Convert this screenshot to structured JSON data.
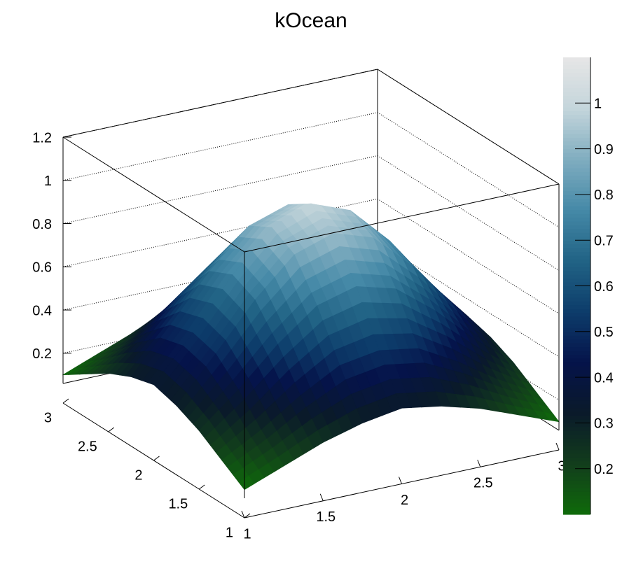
{
  "chart_data": {
    "type": "surface",
    "title": "kOcean",
    "x": [
      1,
      1.25,
      1.5,
      1.75,
      2,
      2.25,
      2.5,
      2.75,
      3
    ],
    "y": [
      1,
      1.25,
      1.5,
      1.75,
      2,
      2.25,
      2.5,
      2.75,
      3
    ],
    "z": [
      [
        0.1,
        0.17,
        0.24,
        0.29,
        0.32,
        0.29,
        0.24,
        0.17,
        0.1
      ],
      [
        0.17,
        0.27,
        0.39,
        0.49,
        0.52,
        0.49,
        0.39,
        0.27,
        0.17
      ],
      [
        0.24,
        0.39,
        0.56,
        0.7,
        0.75,
        0.7,
        0.56,
        0.39,
        0.24
      ],
      [
        0.29,
        0.49,
        0.7,
        0.87,
        0.93,
        0.87,
        0.7,
        0.49,
        0.29
      ],
      [
        0.32,
        0.52,
        0.75,
        0.93,
        1,
        0.93,
        0.75,
        0.52,
        0.32
      ],
      [
        0.29,
        0.49,
        0.7,
        0.87,
        0.93,
        0.87,
        0.7,
        0.49,
        0.29
      ],
      [
        0.24,
        0.39,
        0.56,
        0.7,
        0.75,
        0.7,
        0.56,
        0.39,
        0.24
      ],
      [
        0.17,
        0.27,
        0.39,
        0.49,
        0.52,
        0.49,
        0.39,
        0.27,
        0.17
      ],
      [
        0.1,
        0.17,
        0.24,
        0.29,
        0.32,
        0.29,
        0.24,
        0.17,
        0.1
      ]
    ],
    "xlim": [
      1,
      3
    ],
    "ylim": [
      1,
      3
    ],
    "zlim": [
      0.06,
      1.2
    ],
    "xticks": [
      1,
      1.5,
      2,
      2.5,
      3
    ],
    "yticks": [
      1,
      1.5,
      2,
      2.5,
      3
    ],
    "zticks": [
      0.2,
      0.4,
      0.6,
      0.8,
      1,
      1.2
    ],
    "grid": true,
    "palette": [
      "#0f6b0a",
      "#123d1c",
      "#0a1a2a",
      "#05134a",
      "#0d3d6b",
      "#216385",
      "#4589a7",
      "#80adc0",
      "#c4d5db",
      "#e6e6e6"
    ],
    "colorbar": {
      "lim": [
        0.1,
        1.1
      ],
      "ticks": [
        0.2,
        0.3,
        0.4,
        0.5,
        0.6,
        0.7,
        0.8,
        0.9,
        1
      ]
    }
  }
}
